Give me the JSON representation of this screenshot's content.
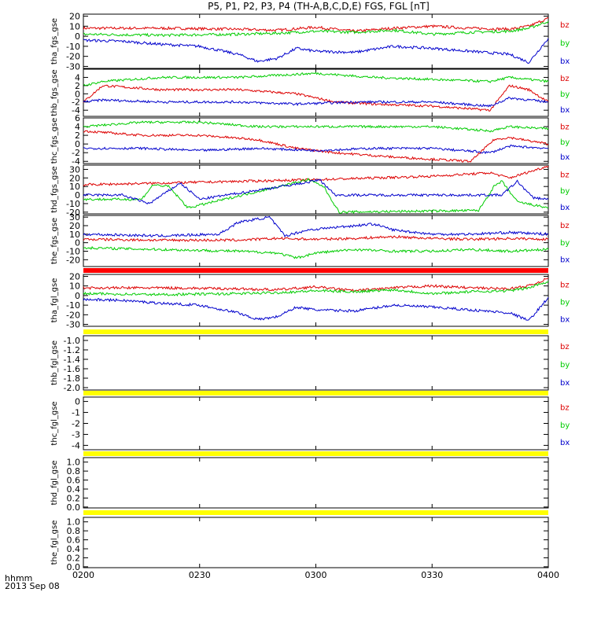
{
  "title": "P5, P1, P2, P3, P4 (TH-A,B,C,D,E) FGS, FGL [nT]",
  "x_axis": {
    "ticks": [
      "0200",
      "0230",
      "0300",
      "0330",
      "0400"
    ],
    "caption_unit": "hhmm",
    "caption_date": "2013 Sep 08"
  },
  "colors": {
    "bz": "#dd0000",
    "by": "#00cc00",
    "bx": "#0000cc",
    "flag_red": "#ff0000",
    "flag_yellow": "#ffff00"
  },
  "chart_data": [
    {
      "type": "line",
      "ylabel": "tha_fgs_gse",
      "ylim": [
        -32,
        22
      ],
      "yticks": [
        20,
        10,
        0,
        -10,
        -20,
        -30
      ],
      "x_range_minutes": [
        0,
        120
      ],
      "legend": [
        "bz",
        "by",
        "bx"
      ],
      "series": [
        {
          "name": "bz",
          "points": [
            [
              0,
              8
            ],
            [
              20,
              8
            ],
            [
              40,
              7
            ],
            [
              50,
              6
            ],
            [
              60,
              9
            ],
            [
              70,
              5
            ],
            [
              80,
              8
            ],
            [
              90,
              10
            ],
            [
              100,
              8
            ],
            [
              110,
              7
            ],
            [
              115,
              10
            ],
            [
              120,
              18
            ]
          ]
        },
        {
          "name": "by",
          "points": [
            [
              0,
              2
            ],
            [
              20,
              1
            ],
            [
              40,
              2
            ],
            [
              50,
              3
            ],
            [
              60,
              5
            ],
            [
              70,
              4
            ],
            [
              80,
              6
            ],
            [
              90,
              2
            ],
            [
              100,
              4
            ],
            [
              110,
              5
            ],
            [
              115,
              8
            ],
            [
              120,
              15
            ]
          ]
        },
        {
          "name": "bx",
          "points": [
            [
              0,
              -4
            ],
            [
              10,
              -5
            ],
            [
              20,
              -8
            ],
            [
              30,
              -10
            ],
            [
              40,
              -18
            ],
            [
              45,
              -25
            ],
            [
              50,
              -22
            ],
            [
              55,
              -12
            ],
            [
              60,
              -15
            ],
            [
              70,
              -16
            ],
            [
              80,
              -10
            ],
            [
              90,
              -12
            ],
            [
              100,
              -15
            ],
            [
              110,
              -18
            ],
            [
              115,
              -26
            ],
            [
              120,
              -2
            ]
          ]
        }
      ]
    },
    {
      "type": "line",
      "ylabel": "thb_fgs_gse",
      "ylim": [
        -5.5,
        6
      ],
      "yticks": [
        4,
        2,
        0,
        -2,
        -4
      ],
      "x_range_minutes": [
        0,
        120
      ],
      "legend": [
        "bz",
        "by",
        "bx"
      ],
      "series": [
        {
          "name": "bz",
          "points": [
            [
              0,
              -2
            ],
            [
              5,
              2
            ],
            [
              20,
              1
            ],
            [
              40,
              1
            ],
            [
              55,
              0
            ],
            [
              65,
              -2
            ],
            [
              75,
              -2.5
            ],
            [
              90,
              -3
            ],
            [
              105,
              -4
            ],
            [
              110,
              2
            ],
            [
              115,
              1
            ],
            [
              120,
              -2
            ]
          ]
        },
        {
          "name": "by",
          "points": [
            [
              0,
              2
            ],
            [
              5,
              3
            ],
            [
              20,
              4
            ],
            [
              40,
              4
            ],
            [
              60,
              5
            ],
            [
              75,
              4
            ],
            [
              90,
              3.5
            ],
            [
              105,
              3
            ],
            [
              110,
              4
            ],
            [
              120,
              3
            ]
          ]
        },
        {
          "name": "bx",
          "points": [
            [
              0,
              -2
            ],
            [
              5,
              -1.5
            ],
            [
              20,
              -2
            ],
            [
              40,
              -2
            ],
            [
              55,
              -2.5
            ],
            [
              70,
              -2
            ],
            [
              90,
              -2
            ],
            [
              105,
              -3
            ],
            [
              110,
              -1
            ],
            [
              120,
              -2
            ]
          ]
        }
      ]
    },
    {
      "type": "line",
      "ylabel": "thc_fgs_gse",
      "ylim": [
        -4.5,
        6
      ],
      "yticks": [
        6,
        4,
        2,
        0,
        -2,
        -4
      ],
      "x_range_minutes": [
        0,
        120
      ],
      "legend": [
        "bz",
        "by",
        "bx"
      ],
      "series": [
        {
          "name": "bz",
          "points": [
            [
              0,
              3
            ],
            [
              15,
              2
            ],
            [
              30,
              2
            ],
            [
              45,
              1
            ],
            [
              55,
              -1
            ],
            [
              65,
              -2
            ],
            [
              80,
              -3
            ],
            [
              100,
              -4
            ],
            [
              106,
              1
            ],
            [
              110,
              1.5
            ],
            [
              120,
              0
            ]
          ]
        },
        {
          "name": "by",
          "points": [
            [
              0,
              4
            ],
            [
              15,
              5
            ],
            [
              30,
              5
            ],
            [
              45,
              4
            ],
            [
              60,
              4
            ],
            [
              75,
              4
            ],
            [
              90,
              4
            ],
            [
              105,
              3
            ],
            [
              110,
              4
            ],
            [
              120,
              3.5
            ]
          ]
        },
        {
          "name": "bx",
          "points": [
            [
              0,
              -1
            ],
            [
              15,
              -1
            ],
            [
              30,
              -1.5
            ],
            [
              45,
              -1
            ],
            [
              60,
              -1.5
            ],
            [
              75,
              -1
            ],
            [
              90,
              -1
            ],
            [
              105,
              -2
            ],
            [
              110,
              -0.5
            ],
            [
              120,
              -1
            ]
          ]
        }
      ]
    },
    {
      "type": "line",
      "ylabel": "thd_fgs_gse",
      "ylim": [
        -22,
        35
      ],
      "yticks": [
        30,
        20,
        10,
        0,
        -10,
        -20
      ],
      "x_range_minutes": [
        0,
        120
      ],
      "legend": [
        "bz",
        "by",
        "bx"
      ],
      "series": [
        {
          "name": "bz",
          "points": [
            [
              0,
              12
            ],
            [
              30,
              15
            ],
            [
              60,
              18
            ],
            [
              75,
              20
            ],
            [
              90,
              22
            ],
            [
              105,
              26
            ],
            [
              110,
              20
            ],
            [
              120,
              34
            ]
          ]
        },
        {
          "name": "by",
          "points": [
            [
              0,
              -5
            ],
            [
              15,
              -5
            ],
            [
              18,
              12
            ],
            [
              22,
              10
            ],
            [
              27,
              -15
            ],
            [
              58,
              18
            ],
            [
              62,
              10
            ],
            [
              66,
              -20
            ],
            [
              102,
              -18
            ],
            [
              106,
              10
            ],
            [
              108,
              16
            ],
            [
              112,
              -8
            ],
            [
              120,
              -15
            ]
          ]
        },
        {
          "name": "bx",
          "points": [
            [
              0,
              0
            ],
            [
              10,
              0
            ],
            [
              17,
              -10
            ],
            [
              22,
              5
            ],
            [
              25,
              14
            ],
            [
              30,
              -5
            ],
            [
              58,
              15
            ],
            [
              61,
              18
            ],
            [
              65,
              0
            ],
            [
              104,
              0
            ],
            [
              108,
              0
            ],
            [
              112,
              16
            ],
            [
              116,
              -3
            ],
            [
              120,
              -5
            ]
          ]
        }
      ]
    },
    {
      "type": "line",
      "ylabel": "the_fgs_gse",
      "ylim": [
        -28,
        32
      ],
      "yticks": [
        30,
        20,
        10,
        0,
        -10,
        -20
      ],
      "x_range_minutes": [
        0,
        120
      ],
      "legend": [
        "bz",
        "by",
        "bx"
      ],
      "series": [
        {
          "name": "bz",
          "points": [
            [
              0,
              4
            ],
            [
              20,
              3
            ],
            [
              40,
              3
            ],
            [
              50,
              5
            ],
            [
              60,
              4
            ],
            [
              70,
              5
            ],
            [
              80,
              7
            ],
            [
              90,
              5
            ],
            [
              100,
              4
            ],
            [
              110,
              5
            ],
            [
              120,
              4
            ]
          ]
        },
        {
          "name": "by",
          "points": [
            [
              0,
              -6
            ],
            [
              20,
              -8
            ],
            [
              40,
              -10
            ],
            [
              50,
              -12
            ],
            [
              55,
              -18
            ],
            [
              60,
              -12
            ],
            [
              70,
              -8
            ],
            [
              80,
              -10
            ],
            [
              90,
              -10
            ],
            [
              100,
              -8
            ],
            [
              110,
              -10
            ],
            [
              120,
              -8
            ]
          ]
        },
        {
          "name": "bx",
          "points": [
            [
              0,
              10
            ],
            [
              20,
              8
            ],
            [
              35,
              10
            ],
            [
              40,
              24
            ],
            [
              48,
              30
            ],
            [
              52,
              8
            ],
            [
              58,
              15
            ],
            [
              65,
              18
            ],
            [
              75,
              22
            ],
            [
              80,
              15
            ],
            [
              90,
              10
            ],
            [
              100,
              10
            ],
            [
              110,
              12
            ],
            [
              120,
              10
            ]
          ]
        }
      ]
    },
    {
      "type": "line",
      "ylabel": "tha_fgl_gse",
      "ylim": [
        -32,
        22
      ],
      "yticks": [
        20,
        10,
        0,
        -10,
        -20,
        -30
      ],
      "x_range_minutes": [
        0,
        120
      ],
      "legend": [
        "bz",
        "by",
        "bx"
      ],
      "series": [
        {
          "name": "bz",
          "points": [
            [
              0,
              8
            ],
            [
              20,
              8
            ],
            [
              40,
              7
            ],
            [
              50,
              6
            ],
            [
              60,
              9
            ],
            [
              70,
              5
            ],
            [
              80,
              8
            ],
            [
              90,
              10
            ],
            [
              100,
              8
            ],
            [
              110,
              7
            ],
            [
              115,
              10
            ],
            [
              120,
              18
            ]
          ]
        },
        {
          "name": "by",
          "points": [
            [
              0,
              2
            ],
            [
              20,
              1
            ],
            [
              40,
              2
            ],
            [
              50,
              3
            ],
            [
              60,
              5
            ],
            [
              70,
              4
            ],
            [
              80,
              6
            ],
            [
              90,
              2
            ],
            [
              100,
              4
            ],
            [
              110,
              5
            ],
            [
              115,
              8
            ],
            [
              120,
              15
            ]
          ]
        },
        {
          "name": "bx",
          "points": [
            [
              0,
              -4
            ],
            [
              10,
              -5
            ],
            [
              20,
              -8
            ],
            [
              30,
              -10
            ],
            [
              40,
              -18
            ],
            [
              45,
              -25
            ],
            [
              50,
              -22
            ],
            [
              55,
              -12
            ],
            [
              60,
              -15
            ],
            [
              70,
              -16
            ],
            [
              80,
              -10
            ],
            [
              90,
              -12
            ],
            [
              100,
              -15
            ],
            [
              110,
              -18
            ],
            [
              115,
              -26
            ],
            [
              120,
              -2
            ]
          ]
        }
      ]
    },
    {
      "type": "line",
      "ylabel": "thb_fgl_gse",
      "ylim": [
        -2.05,
        -0.9
      ],
      "yticks": [
        "-1.0",
        "-1.2",
        "-1.4",
        "-1.6",
        "-1.8",
        "-2.0"
      ],
      "legend": [
        "bz",
        "by",
        "bx"
      ],
      "series": []
    },
    {
      "type": "line",
      "ylabel": "thc_fgl_gse",
      "ylim": [
        -4.4,
        0.4
      ],
      "yticks": [
        "0",
        "-1",
        "-2",
        "-3",
        "-4"
      ],
      "legend": [
        "bz",
        "by",
        "bx"
      ],
      "series": []
    },
    {
      "type": "line",
      "ylabel": "thd_fgl_gse",
      "ylim": [
        -0.02,
        1.1
      ],
      "yticks": [
        "1.0",
        "0.8",
        "0.6",
        "0.4",
        "0.2",
        "0.0"
      ],
      "legend": [],
      "series": []
    },
    {
      "type": "line",
      "ylabel": "the_fgl_gse",
      "ylim": [
        -0.02,
        1.1
      ],
      "yticks": [
        "1.0",
        "0.8",
        "0.6",
        "0.4",
        "0.2",
        "0.0"
      ],
      "legend": [],
      "series": []
    }
  ]
}
